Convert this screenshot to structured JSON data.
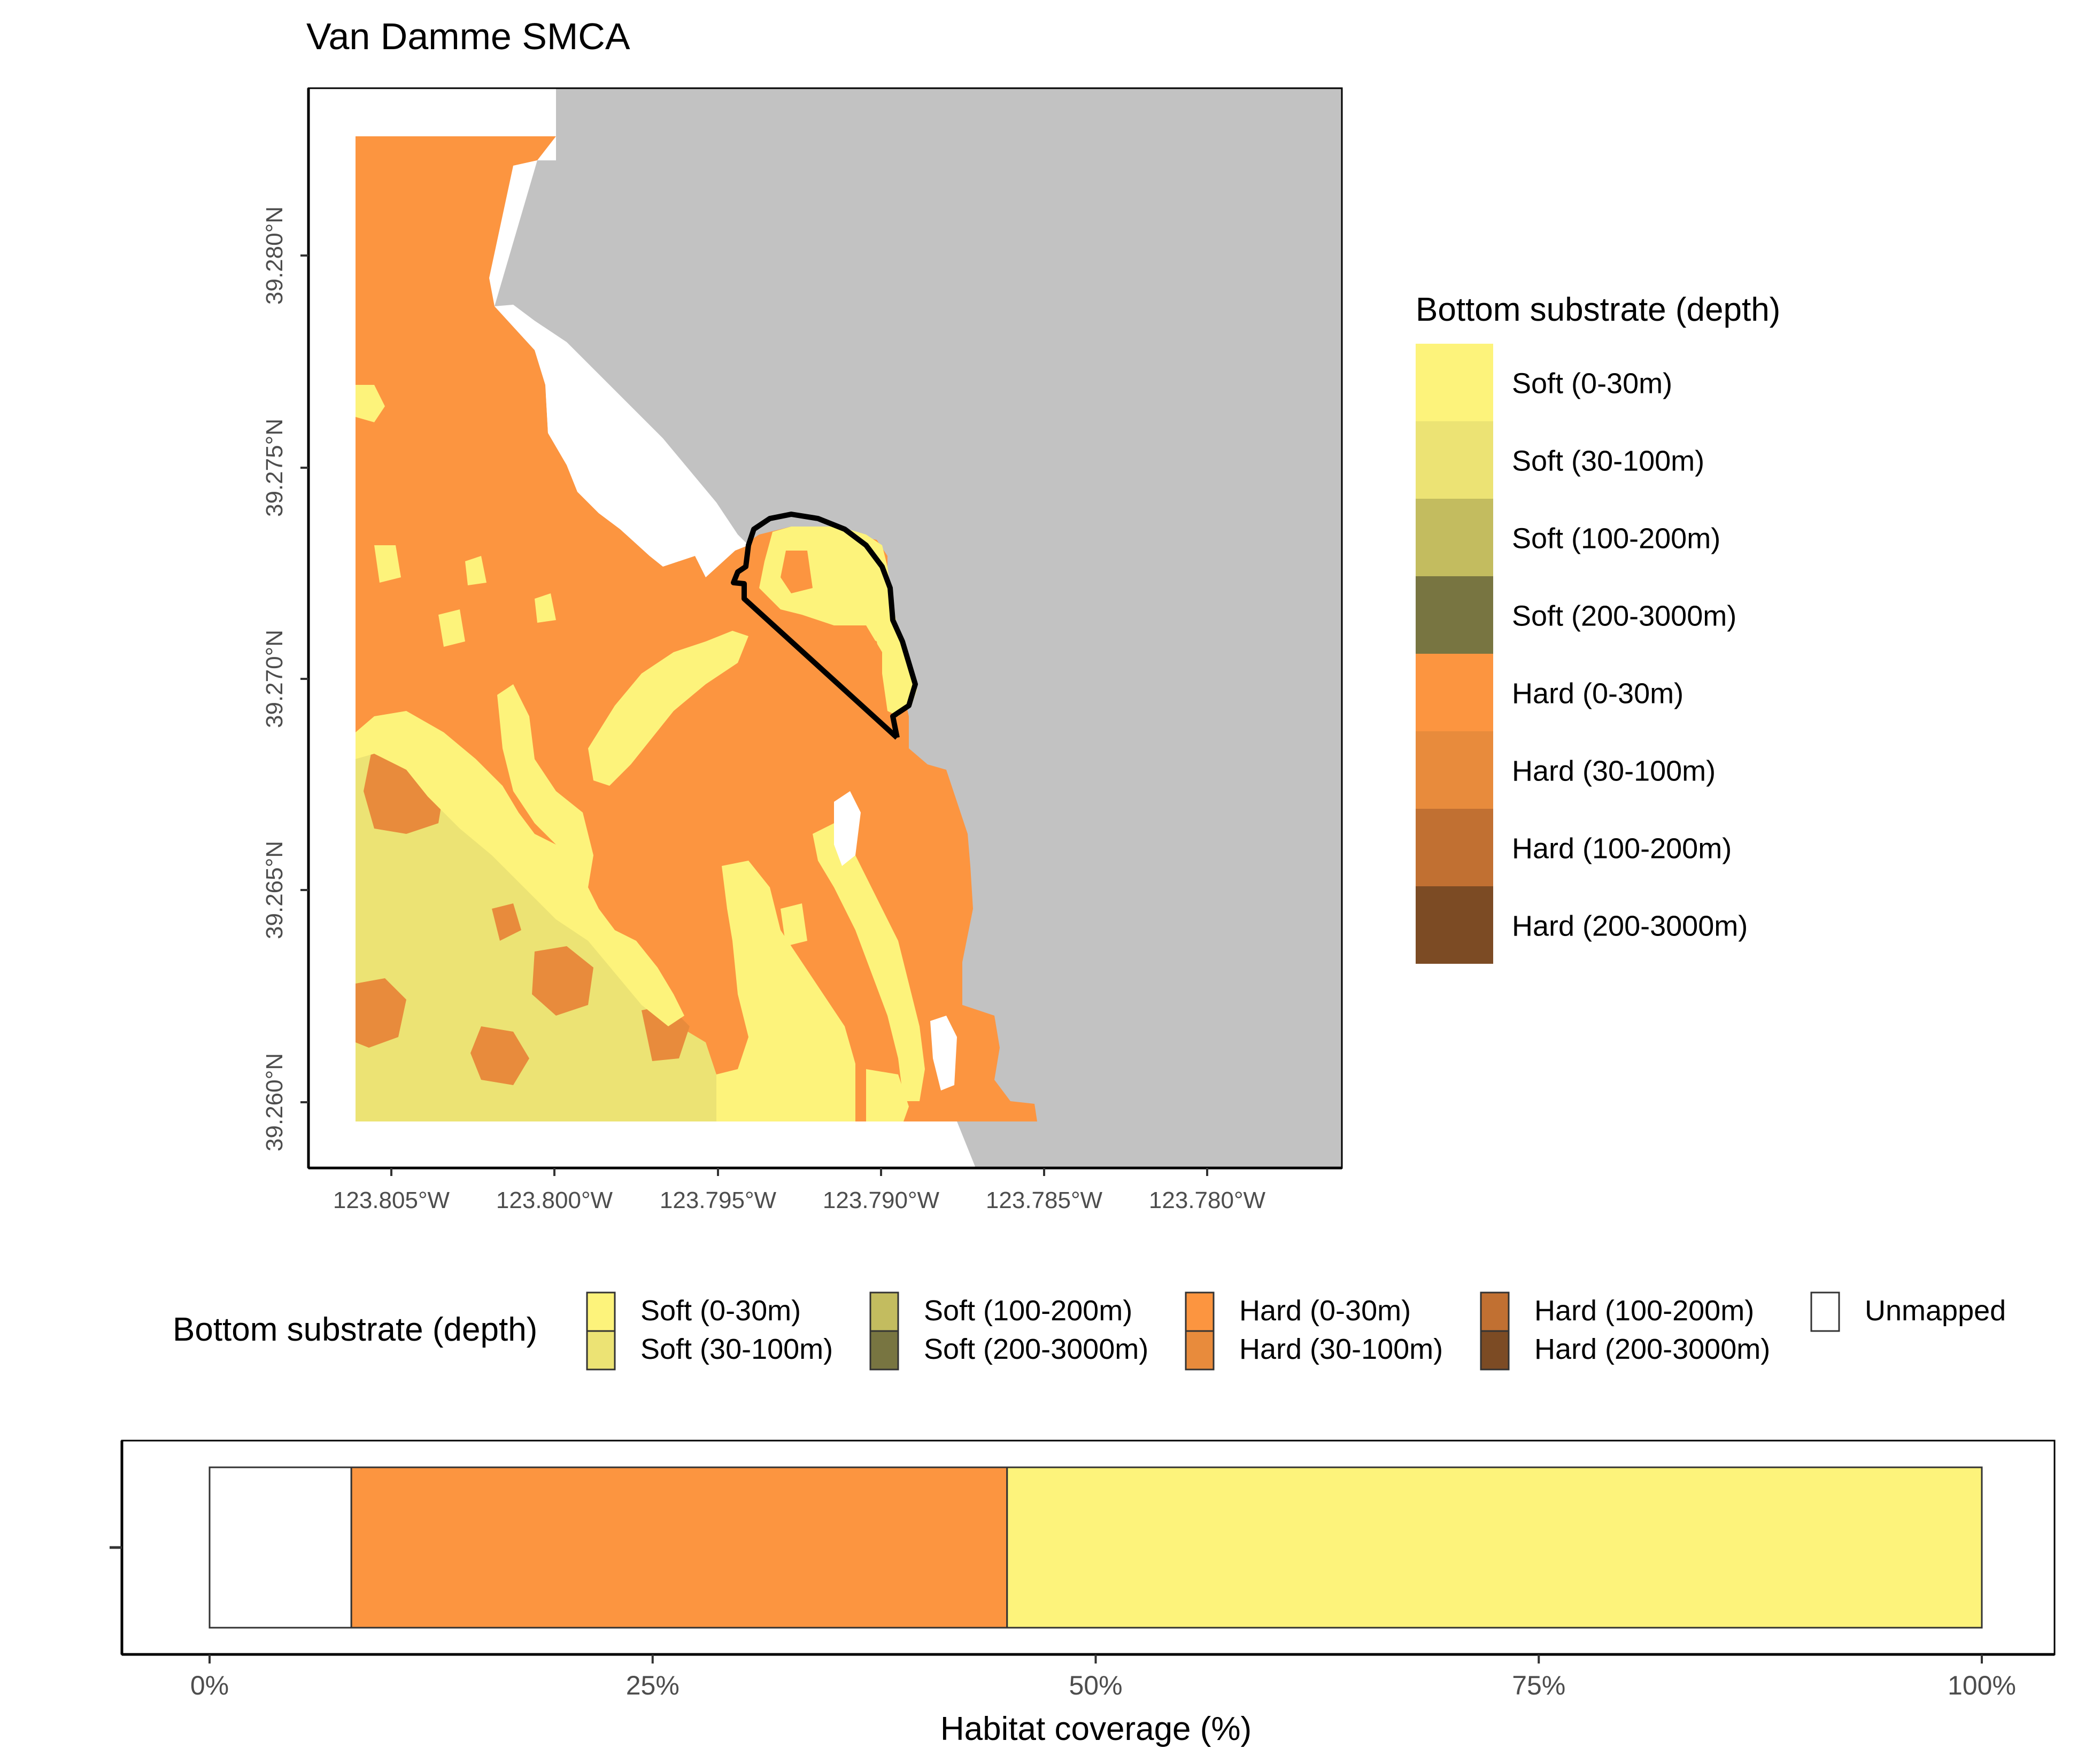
{
  "map": {
    "title": "Van Damme SMCA",
    "x_ticks": [
      "123.805°W",
      "123.800°W",
      "123.795°W",
      "123.790°W",
      "123.785°W",
      "123.780°W"
    ],
    "y_ticks": [
      "39.280°N",
      "39.275°N",
      "39.270°N",
      "39.265°N",
      "39.260°N"
    ],
    "land_color": "#c2c2c2",
    "boundary_color": "#000000"
  },
  "legend_right": {
    "title": "Bottom substrate (depth)",
    "items": [
      {
        "label": "Soft (0-30m)",
        "color": "#fdf37b"
      },
      {
        "label": "Soft (30-100m)",
        "color": "#ece374"
      },
      {
        "label": "Soft (100-200m)",
        "color": "#c3bc5f"
      },
      {
        "label": "Soft (200-3000m)",
        "color": "#787541"
      },
      {
        "label": "Hard (0-30m)",
        "color": "#fc9540"
      },
      {
        "label": "Hard (30-100m)",
        "color": "#e88b3c"
      },
      {
        "label": "Hard (100-200m)",
        "color": "#c17032"
      },
      {
        "label": "Hard (200-3000m)",
        "color": "#7c4b24"
      }
    ]
  },
  "legend_bottom": {
    "title": "Bottom substrate (depth)",
    "columns": [
      [
        {
          "label": "Soft (0-30m)",
          "color": "#fdf37b"
        },
        {
          "label": "Soft (30-100m)",
          "color": "#ece374"
        }
      ],
      [
        {
          "label": "Soft (100-200m)",
          "color": "#c3bc5f"
        },
        {
          "label": "Soft (200-3000m)",
          "color": "#787541"
        }
      ],
      [
        {
          "label": "Hard (0-30m)",
          "color": "#fc9540"
        },
        {
          "label": "Hard (30-100m)",
          "color": "#e88b3c"
        }
      ],
      [
        {
          "label": "Hard (100-200m)",
          "color": "#c17032"
        },
        {
          "label": "Hard (200-3000m)",
          "color": "#7c4b24"
        }
      ],
      [
        {
          "label": "Unmapped",
          "color": "#ffffff"
        }
      ]
    ]
  },
  "chart_data": {
    "type": "bar",
    "orientation": "horizontal",
    "stacked": true,
    "xlabel": "Habitat coverage (%)",
    "xlim": [
      0,
      100
    ],
    "x_ticks": [
      "0%",
      "25%",
      "50%",
      "75%",
      "100%"
    ],
    "x_tick_values": [
      0,
      25,
      50,
      75,
      100
    ],
    "segments": [
      {
        "name": "Unmapped",
        "value": 8,
        "color": "#ffffff"
      },
      {
        "name": "Hard (0-30m)",
        "value": 37,
        "color": "#fc9540"
      },
      {
        "name": "Soft (0-30m)",
        "value": 55,
        "color": "#fdf37b"
      }
    ]
  }
}
